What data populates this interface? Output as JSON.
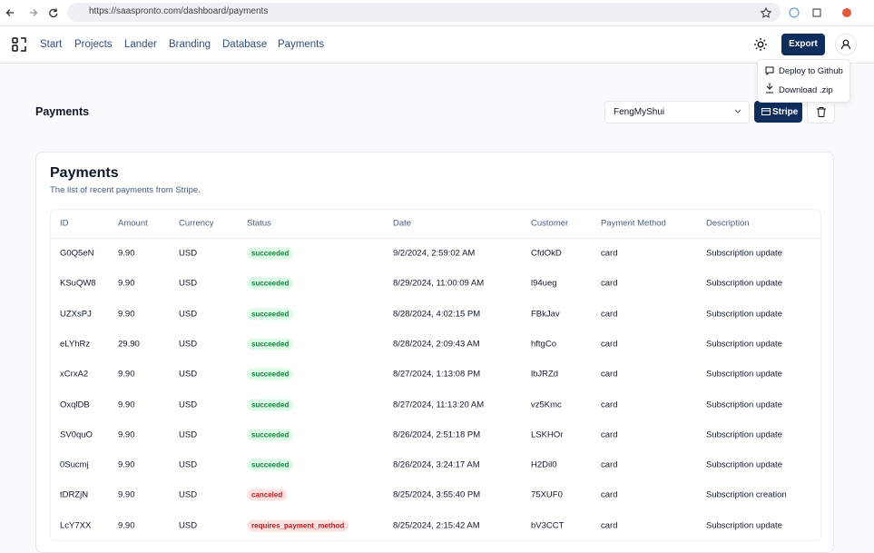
{
  "browser": {
    "url": "https://saaspronto.com/dashboard/payments"
  },
  "nav": {
    "items": [
      "Start",
      "Projects",
      "Lander",
      "Branding",
      "Database",
      "Payments"
    ],
    "export": "Export"
  },
  "dropdown": {
    "items": [
      "Deploy to Github",
      "Download .zip"
    ]
  },
  "toolbar": {
    "title": "Payments",
    "project": "FengMyShui",
    "stripe": "Stripe"
  },
  "card": {
    "title": "Payments",
    "subtitle": "The list of recent payments from Stripe.",
    "table": {
      "columns": [
        "ID",
        "Amount",
        "Currency",
        "Status",
        "Date",
        "Customer",
        "Payment Method",
        "Description"
      ],
      "rows": [
        [
          "G0Q5eN",
          "9.90",
          "USD",
          "succeeded",
          "9/2/2024, 2:59:02 AM",
          "CfdOkD",
          "card",
          "Subscription update"
        ],
        [
          "KSuQW8",
          "9.90",
          "USD",
          "succeeded",
          "8/29/2024, 11:00:09 AM",
          "l94ueg",
          "card",
          "Subscription update"
        ],
        [
          "UZXsPJ",
          "9.90",
          "USD",
          "succeeded",
          "8/28/2024, 4:02:15 PM",
          "FBkJav",
          "card",
          "Subscription update"
        ],
        [
          "eLYhRz",
          "29.90",
          "USD",
          "succeeded",
          "8/28/2024, 2:09:43 AM",
          "hftgCo",
          "card",
          "Subscription update"
        ],
        [
          "xCrxA2",
          "9.90",
          "USD",
          "succeeded",
          "8/27/2024, 1:13:08 PM",
          "lbJRZd",
          "card",
          "Subscription update"
        ],
        [
          "OxqlDB",
          "9.90",
          "USD",
          "succeeded",
          "8/27/2024, 11:13:20 AM",
          "vz5Kmc",
          "card",
          "Subscription update"
        ],
        [
          "SV0quO",
          "9.90",
          "USD",
          "succeeded",
          "8/26/2024, 2:51:18 PM",
          "LSKHOr",
          "card",
          "Subscription update"
        ],
        [
          "0Sucmj",
          "9.90",
          "USD",
          "succeeded",
          "8/26/2024, 3:24:17 AM",
          "H2Dil0",
          "card",
          "Subscription update"
        ],
        [
          "tDRZjN",
          "9.90",
          "USD",
          "canceled",
          "8/25/2024, 3:55:40 PM",
          "75XUF0",
          "card",
          "Subscription creation"
        ],
        [
          "LcY7XX",
          "9.90",
          "USD",
          "requires_payment_method",
          "8/25/2024, 2:15:42 AM",
          "bV3CCT",
          "card",
          "Subscription update"
        ]
      ]
    }
  }
}
